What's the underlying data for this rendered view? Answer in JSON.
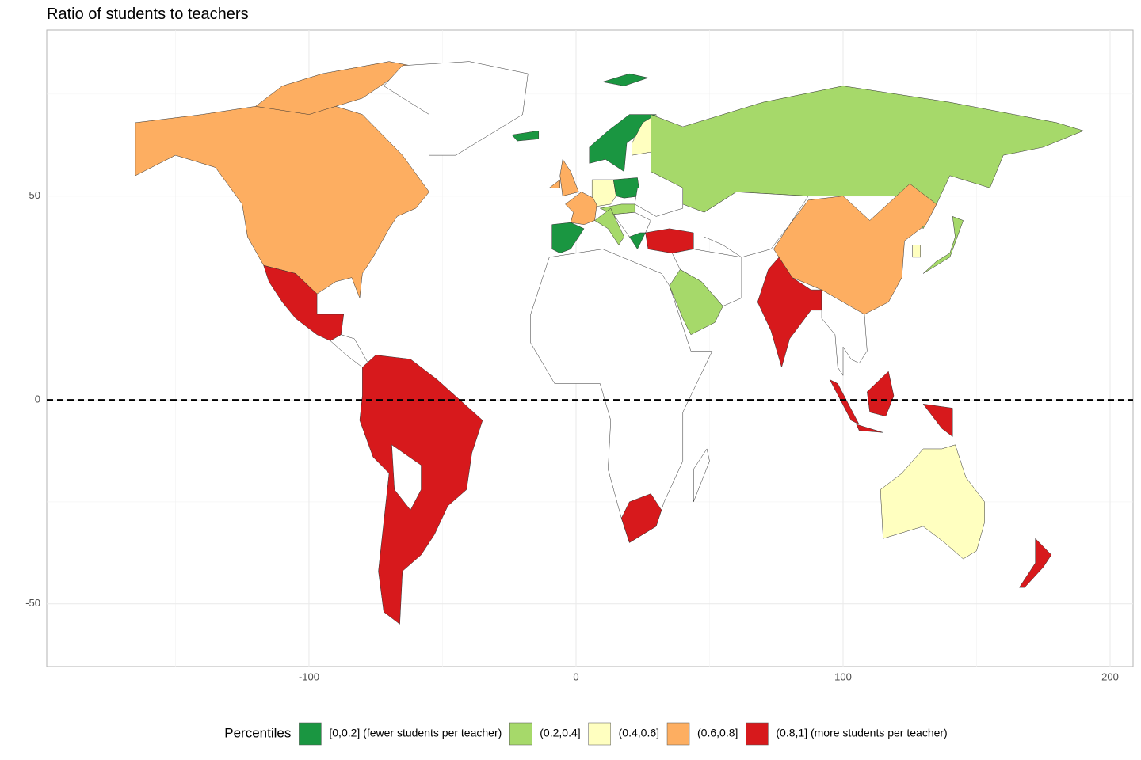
{
  "chart_data": {
    "type": "map",
    "title": "Ratio of students to teachers",
    "xlim": [
      -198.2,
      208.6
    ],
    "ylim": [
      -65.4,
      90.7
    ],
    "xticks": [
      -100,
      0,
      100,
      200
    ],
    "yticks": [
      -50,
      0,
      50
    ],
    "grid": true,
    "reference_line_y": 0,
    "legend": {
      "title": "Percentiles",
      "position": "bottom",
      "items": [
        {
          "label": "[0,0.2] (fewer students per teacher)",
          "color": "#1a9641"
        },
        {
          "label": "(0.2,0.4]",
          "color": "#a6d96a"
        },
        {
          "label": "(0.4,0.6]",
          "color": "#ffffc0"
        },
        {
          "label": "(0.6,0.8]",
          "color": "#fdae61"
        },
        {
          "label": "(0.8,1] (more students per teacher)",
          "color": "#d7191c"
        }
      ]
    }
  }
}
